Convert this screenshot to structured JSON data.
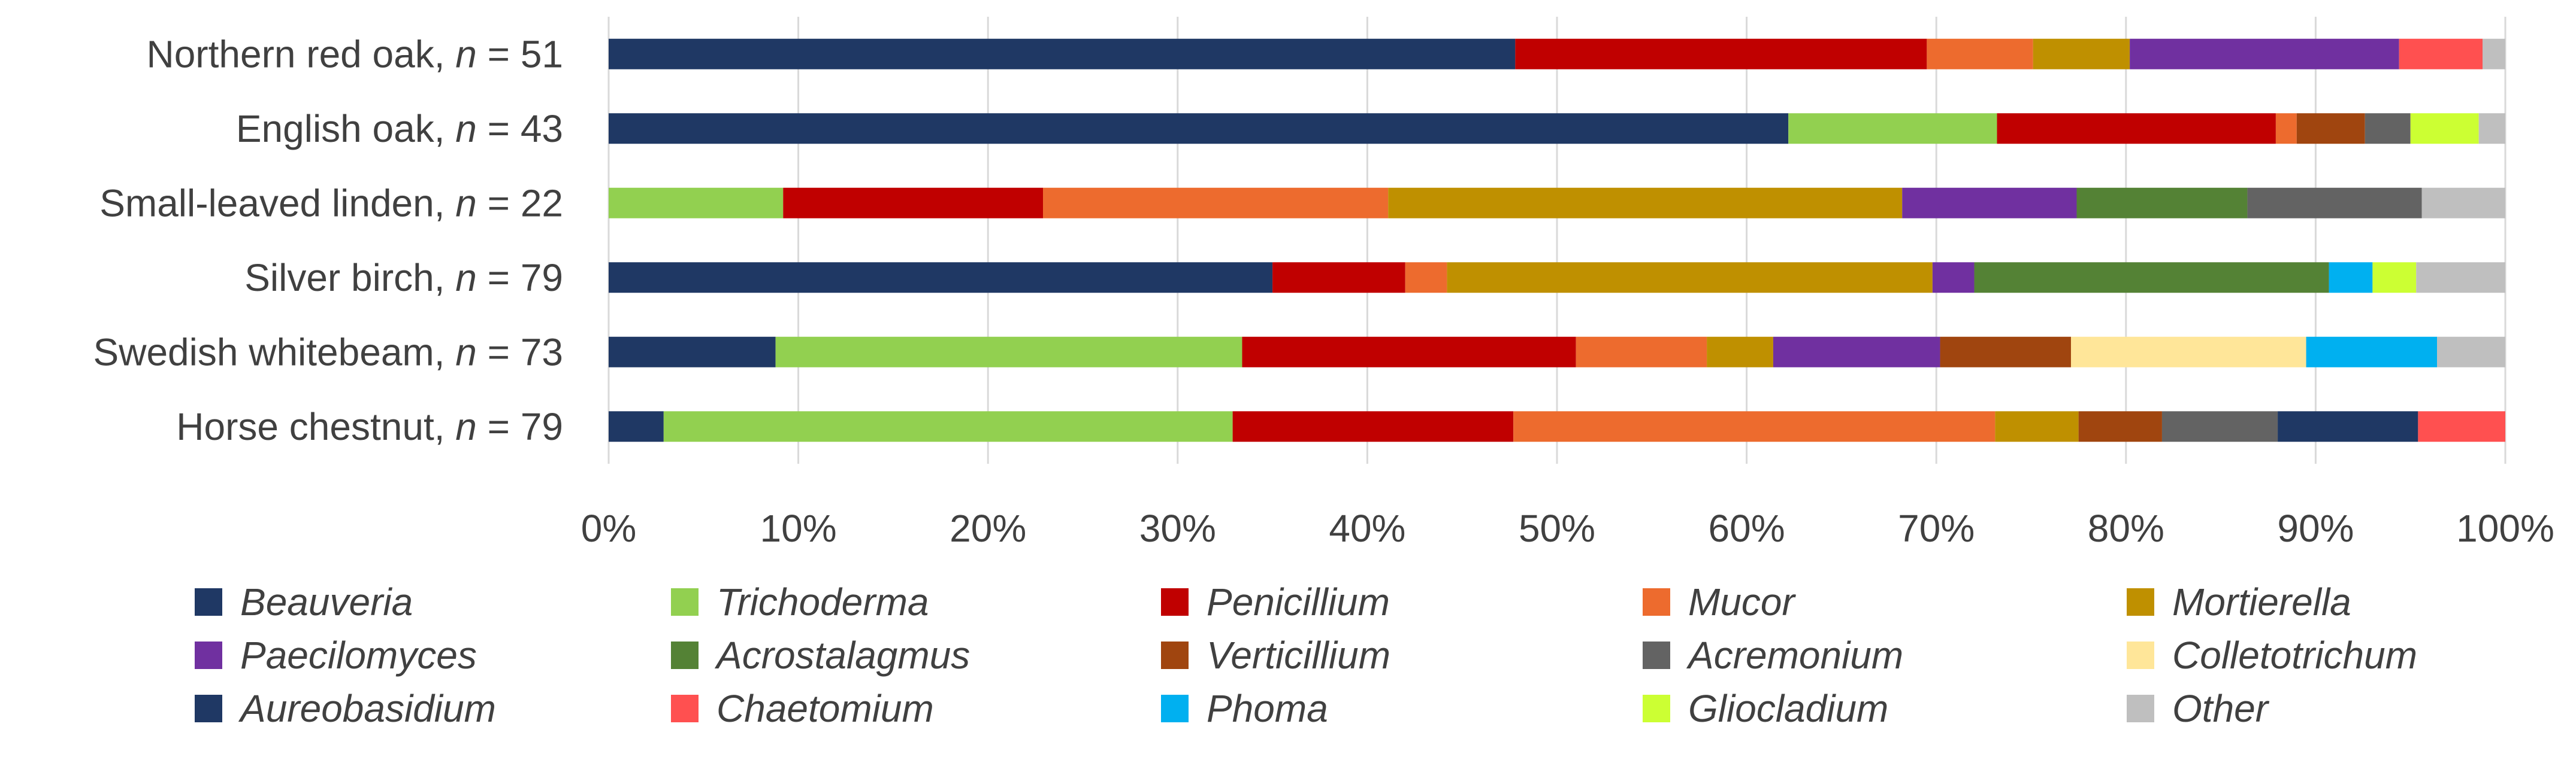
{
  "chart_data": {
    "type": "bar",
    "orientation": "horizontal",
    "stacked": "percent",
    "categories": [
      {
        "name": "Northern red oak",
        "n_label": "n",
        "n_value": "51"
      },
      {
        "name": "English oak",
        "n_label": "n",
        "n_value": "43"
      },
      {
        "name": "Small-leaved linden",
        "n_label": "n",
        "n_value": "22"
      },
      {
        "name": "Silver birch",
        "n_label": "n",
        "n_value": "79"
      },
      {
        "name": "Swedish whitebeam",
        "n_label": "n",
        "n_value": "73"
      },
      {
        "name": "Horse chestnut",
        "n_label": "n",
        "n_value": "79"
      }
    ],
    "series": [
      {
        "name": "Beauveria",
        "color": "#1f3864",
        "values": [
          47.8,
          62.2,
          0,
          35.0,
          8.8,
          2.9
        ]
      },
      {
        "name": "Trichoderma",
        "color": "#92d050",
        "values": [
          0,
          11.0,
          9.2,
          0,
          24.6,
          30.0
        ]
      },
      {
        "name": "Penicillium",
        "color": "#c00000",
        "values": [
          21.7,
          14.7,
          13.7,
          7.0,
          17.6,
          14.8
        ]
      },
      {
        "name": "Mucor",
        "color": "#ed6b2e",
        "values": [
          5.6,
          1.1,
          18.2,
          2.2,
          6.9,
          25.4
        ]
      },
      {
        "name": "Mortierella",
        "color": "#bf9000",
        "values": [
          5.1,
          0,
          27.1,
          25.6,
          3.5,
          4.4
        ]
      },
      {
        "name": "Paecilomyces",
        "color": "#7030a0",
        "values": [
          14.2,
          0,
          9.2,
          2.2,
          8.8,
          0
        ]
      },
      {
        "name": "Acrostalagmus",
        "color": "#548235",
        "values": [
          0,
          0,
          9.0,
          18.7,
          0,
          0
        ]
      },
      {
        "name": "Verticillium",
        "color": "#a0450f",
        "values": [
          0,
          3.6,
          0,
          0,
          6.9,
          4.4
        ]
      },
      {
        "name": "Acremonium",
        "color": "#636363",
        "values": [
          0,
          2.4,
          9.2,
          0,
          0,
          6.1
        ]
      },
      {
        "name": "Colletotrichum",
        "color": "#ffe699",
        "values": [
          0,
          0,
          0,
          0,
          12.4,
          0
        ]
      },
      {
        "name": "Aureobasidium",
        "color": "#1f3864",
        "values": [
          0,
          0,
          0,
          0,
          0,
          7.4
        ]
      },
      {
        "name": "Chaetomium",
        "color": "#ff5050",
        "values": [
          4.4,
          0,
          0,
          0,
          0,
          4.6
        ]
      },
      {
        "name": "Phoma",
        "color": "#00b0f0",
        "values": [
          0,
          0,
          0,
          2.3,
          6.9,
          0
        ]
      },
      {
        "name": "Gliocladium",
        "color": "#ccff33",
        "values": [
          0,
          3.6,
          0,
          2.3,
          0,
          0
        ]
      },
      {
        "name": "Other",
        "color": "#bfbfbf",
        "values": [
          1.2,
          1.4,
          4.4,
          4.7,
          3.6,
          0
        ]
      }
    ],
    "xlim": [
      0,
      100
    ],
    "xticks": [
      "0%",
      "10%",
      "20%",
      "30%",
      "40%",
      "50%",
      "60%",
      "70%",
      "80%",
      "90%",
      "100%"
    ],
    "grid": "vertical",
    "legend": "bottom"
  }
}
